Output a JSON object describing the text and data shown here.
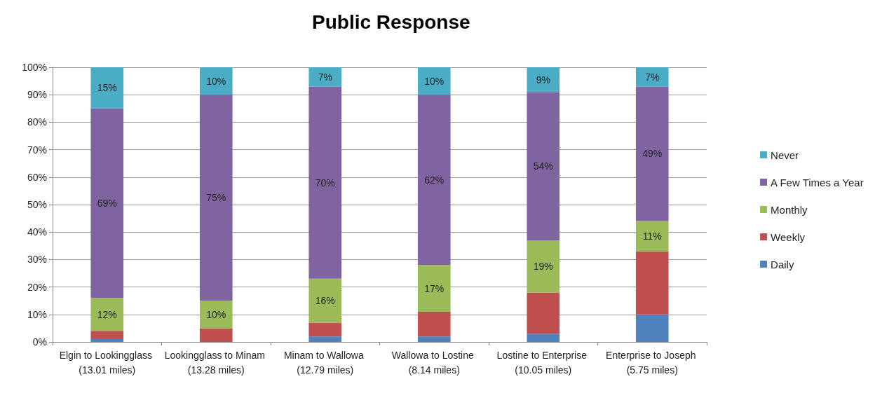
{
  "chart_data": {
    "type": "bar",
    "title": "Public Response",
    "stacked": true,
    "grid": "y",
    "legend": "right",
    "categories": [
      "Elgin to Lookingglass (13.01 miles)",
      "Lookingglass to Minam (13.28 miles)",
      "Minam to Wallowa (12.79 miles)",
      "Wallowa to Lostine (8.14 miles)",
      "Lostine to Enterprise (10.05 miles)",
      "Enterprise to Joseph (5.75 miles)"
    ],
    "ylim": [
      0,
      100
    ],
    "yticks": [
      {
        "value": 0,
        "label": "0%"
      },
      {
        "value": 10,
        "label": "10%"
      },
      {
        "value": 20,
        "label": "20%"
      },
      {
        "value": 30,
        "label": "30%"
      },
      {
        "value": 40,
        "label": "40%"
      },
      {
        "value": 50,
        "label": "50%"
      },
      {
        "value": 60,
        "label": "60%"
      },
      {
        "value": 70,
        "label": "70%"
      },
      {
        "value": 80,
        "label": "80%"
      },
      {
        "value": 90,
        "label": "90%"
      },
      {
        "value": 100,
        "label": "100%"
      }
    ],
    "series": [
      {
        "name": "Daily",
        "color": "#4f81bd",
        "values": [
          1,
          0,
          2,
          2,
          3,
          10
        ]
      },
      {
        "name": "Weekly",
        "color": "#c0504d",
        "values": [
          3,
          5,
          5,
          9,
          15,
          23
        ]
      },
      {
        "name": "Monthly",
        "color": "#9bbb59",
        "values": [
          12,
          10,
          16,
          17,
          19,
          11
        ],
        "value_labels": [
          "12%",
          "10%",
          "16%",
          "17%",
          "19%",
          "11%"
        ]
      },
      {
        "name": "A Few Times a Year",
        "color": "#8064a2",
        "values": [
          69,
          75,
          70,
          62,
          54,
          49
        ],
        "value_labels": [
          "69%",
          "75%",
          "70%",
          "62%",
          "54%",
          "49%"
        ]
      },
      {
        "name": "Never",
        "color": "#4bacc6",
        "values": [
          15,
          10,
          7,
          10,
          9,
          7
        ],
        "value_labels": [
          "15%",
          "10%",
          "7%",
          "10%",
          "9%",
          "7%"
        ]
      }
    ]
  }
}
